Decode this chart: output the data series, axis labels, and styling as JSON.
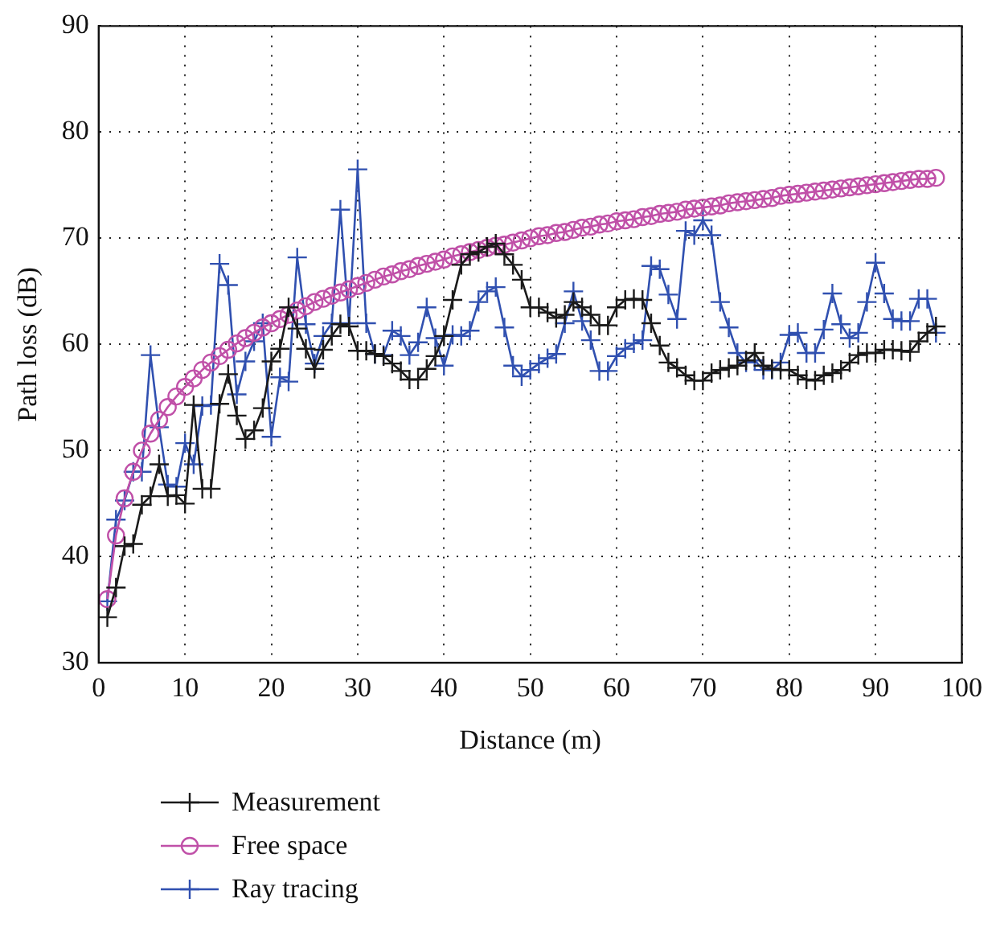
{
  "chart_data": {
    "type": "line",
    "xlabel": "Distance (m)",
    "ylabel": "Path loss (dB)",
    "xlim": [
      0,
      100
    ],
    "xticks": [
      0,
      10,
      20,
      30,
      40,
      50,
      60,
      70,
      80,
      90,
      100
    ],
    "ylim": [
      30,
      90
    ],
    "yticks": [
      30,
      40,
      50,
      60,
      70,
      80,
      90
    ],
    "grid": true,
    "legend": "bottom left",
    "x": [
      1,
      2,
      3,
      4,
      5,
      6,
      7,
      8,
      9,
      10,
      11,
      12,
      13,
      14,
      15,
      16,
      17,
      18,
      19,
      20,
      21,
      22,
      23,
      24,
      25,
      26,
      27,
      28,
      29,
      30,
      31,
      32,
      33,
      34,
      35,
      36,
      37,
      38,
      39,
      40,
      41,
      42,
      43,
      44,
      45,
      46,
      47,
      48,
      49,
      50,
      51,
      52,
      53,
      54,
      55,
      56,
      57,
      58,
      59,
      60,
      61,
      62,
      63,
      64,
      65,
      66,
      67,
      68,
      69,
      70,
      71,
      72,
      73,
      74,
      75,
      76,
      77,
      78,
      79,
      80,
      81,
      82,
      83,
      84,
      85,
      86,
      87,
      88,
      89,
      90,
      91,
      92,
      93,
      94,
      95,
      96,
      97
    ],
    "series": [
      {
        "name": "Measurement",
        "color": "#1a1a1a",
        "marker": "cross",
        "values": [
          34.3,
          37.1,
          41,
          41.2,
          44.9,
          45.7,
          48.7,
          45.7,
          45.8,
          45,
          54.3,
          46.4,
          46.4,
          54.4,
          57.2,
          53.3,
          51.1,
          51.9,
          54,
          58.4,
          59.6,
          63.5,
          61.5,
          59.6,
          57.7,
          59.5,
          60.8,
          61.9,
          61.7,
          59.4,
          59.4,
          59.1,
          58.9,
          58.2,
          57.5,
          56.7,
          56.7,
          57.7,
          58.9,
          60.8,
          64.2,
          67.5,
          68.5,
          68.7,
          69.2,
          69.5,
          68.5,
          67.5,
          66.1,
          63.5,
          63.5,
          63,
          62.5,
          62.8,
          64,
          63.5,
          62.8,
          61.8,
          61.8,
          63.5,
          64.2,
          64.3,
          64.2,
          62,
          59.9,
          58.3,
          57.8,
          57.1,
          56.6,
          56.6,
          57.3,
          57.6,
          57.8,
          58,
          58.5,
          59.2,
          58,
          57.7,
          57.6,
          57.6,
          57.1,
          56.7,
          56.6,
          57.1,
          57.3,
          57.6,
          58.3,
          59,
          59.2,
          59.2,
          59.5,
          59.5,
          59.4,
          59.3,
          60.3,
          61.1,
          61.7
        ]
      },
      {
        "name": "Free space",
        "color": "#c050a8",
        "marker": "circle",
        "values": [
          36,
          42,
          45.5,
          48,
          50,
          51.6,
          52.9,
          54.1,
          55.1,
          56,
          56.8,
          57.6,
          58.3,
          58.9,
          59.5,
          60.1,
          60.6,
          61.1,
          61.6,
          62,
          62.4,
          62.8,
          63.2,
          63.6,
          64,
          64.3,
          64.6,
          64.9,
          65.2,
          65.5,
          65.8,
          66.1,
          66.4,
          66.6,
          66.9,
          67.1,
          67.4,
          67.6,
          67.8,
          68,
          68.3,
          68.5,
          68.7,
          68.9,
          69.1,
          69.3,
          69.4,
          69.6,
          69.8,
          70,
          70.2,
          70.3,
          70.5,
          70.6,
          70.8,
          71,
          71.1,
          71.3,
          71.4,
          71.6,
          71.7,
          71.8,
          72,
          72.1,
          72.3,
          72.4,
          72.5,
          72.7,
          72.8,
          72.9,
          73,
          73.1,
          73.3,
          73.4,
          73.5,
          73.6,
          73.7,
          73.8,
          74,
          74.1,
          74.2,
          74.3,
          74.4,
          74.5,
          74.6,
          74.7,
          74.8,
          74.9,
          75,
          75.1,
          75.2,
          75.3,
          75.4,
          75.5,
          75.6,
          75.6,
          75.7
        ]
      },
      {
        "name": "Ray tracing",
        "color": "#3050b0",
        "marker": "cross",
        "values": [
          35.8,
          43.5,
          45.3,
          48,
          48,
          59,
          52.2,
          46.8,
          46.6,
          50.7,
          48.7,
          54.2,
          54.3,
          67.6,
          65.6,
          55.3,
          58.4,
          60.3,
          62,
          51.3,
          56.9,
          56.5,
          68.2,
          61.9,
          58.2,
          60.8,
          62,
          72.7,
          62,
          76.5,
          62,
          59.1,
          59,
          61.3,
          60.8,
          59,
          60.2,
          63.5,
          60.6,
          58,
          60.9,
          60.8,
          61.3,
          64,
          65,
          65.4,
          61.6,
          58,
          57,
          57.6,
          58.2,
          58.7,
          59.1,
          62,
          65,
          62.2,
          60.4,
          57.5,
          57.5,
          58.9,
          59.6,
          60.1,
          60.4,
          67.4,
          67.1,
          64.7,
          62.4,
          70.7,
          70.3,
          71.7,
          70.3,
          64,
          61.6,
          59.2,
          58.3,
          58.5,
          57.6,
          57.6,
          58.3,
          60.9,
          61.1,
          59.2,
          59.2,
          61.4,
          64.8,
          61.9,
          60.6,
          61.1,
          64,
          67.7,
          64.8,
          62.4,
          62.2,
          62.2,
          64.3,
          64.3,
          61.1
        ]
      }
    ]
  }
}
